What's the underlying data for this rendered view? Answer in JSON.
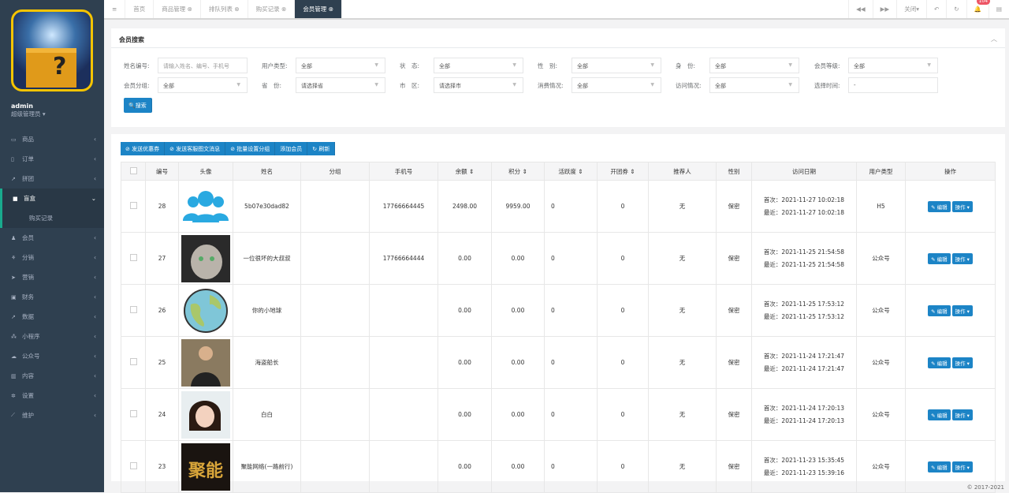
{
  "sidebar": {
    "user": "admin",
    "role": "超级管理员 ▾",
    "items": [
      {
        "label": "商品",
        "icon": "laptop-icon"
      },
      {
        "label": "订单",
        "icon": "order-icon"
      },
      {
        "label": "拼团",
        "icon": "chart-icon"
      },
      {
        "label": "盲盒",
        "icon": "square-icon",
        "active": true
      },
      {
        "label": "会员",
        "icon": "user-icon"
      },
      {
        "label": "分销",
        "icon": "sitemap-icon"
      },
      {
        "label": "营销",
        "icon": "paper-plane-icon"
      },
      {
        "label": "财务",
        "icon": "money-icon"
      },
      {
        "label": "数据",
        "icon": "chart-icon"
      },
      {
        "label": "小程序",
        "icon": "cubes-icon"
      },
      {
        "label": "公众号",
        "icon": "wechat-icon"
      },
      {
        "label": "内容",
        "icon": "book-icon"
      },
      {
        "label": "设置",
        "icon": "gear-icon"
      },
      {
        "label": "维护",
        "icon": "wrench-icon"
      }
    ],
    "sub": "购买记录"
  },
  "tabs": [
    {
      "label": "首页"
    },
    {
      "label": "商品管理 ⊗"
    },
    {
      "label": "排队列表 ⊗"
    },
    {
      "label": "购买记录 ⊗"
    },
    {
      "label": "会员管理 ⊗",
      "active": true
    }
  ],
  "toolbar": {
    "close": "关闭▾",
    "notifications": "104"
  },
  "search": {
    "title": "会员搜索",
    "fields": [
      {
        "label": "姓名编号:",
        "value": "",
        "placeholder": "请输入姓名、编号、手机号"
      },
      {
        "label": "用户类型:",
        "value": "全部"
      },
      {
        "label": "状　态:",
        "value": "全部"
      },
      {
        "label": "性　别:",
        "value": "全部"
      },
      {
        "label": "身　份:",
        "value": "全部"
      },
      {
        "label": "会员等级:",
        "value": "全部"
      },
      {
        "label": "会员分组:",
        "value": "全部"
      },
      {
        "label": "省　份:",
        "value": "请选择省"
      },
      {
        "label": "市　区:",
        "value": "请选择市"
      },
      {
        "label": "消费情况:",
        "value": "全部"
      },
      {
        "label": "访问情况:",
        "value": "全部"
      },
      {
        "label": "选择时间:",
        "value": "-"
      }
    ],
    "button": "搜索"
  },
  "actions": [
    "⊘ 发送优惠券",
    "⊘ 发送客服图文消息",
    "⊘ 批量设置分组",
    "添加会员",
    "↻ 刷新"
  ],
  "table": {
    "headers": [
      "",
      "编号",
      "头像",
      "姓名",
      "分组",
      "手机号",
      "余额 ⇕",
      "积分 ⇕",
      "活跃度 ⇕",
      "开团券 ⇕",
      "推荐人",
      "性别",
      "访问日期",
      "用户类型",
      "操作"
    ],
    "rows": [
      {
        "id": "28",
        "avatar": "users-icon",
        "name": "5b07e30dad82",
        "group": "",
        "phone": "17766664445",
        "balance": "2498.00",
        "points": "9959.00",
        "active": "0",
        "coupons": "0",
        "ref": "无",
        "gender": "保密",
        "first": "首次：2021-11-27 10:02:18",
        "last": "最近：2021-11-27 10:02:18",
        "type": "H5"
      },
      {
        "id": "27",
        "avatar": "cat-photo",
        "name": "一位很坏的大叔叔",
        "group": "",
        "phone": "17766664444",
        "balance": "0.00",
        "points": "0.00",
        "active": "0",
        "coupons": "0",
        "ref": "无",
        "gender": "保密",
        "first": "首次：2021-11-25 21:54:58",
        "last": "最近：2021-11-25 21:54:58",
        "type": "公众号"
      },
      {
        "id": "26",
        "avatar": "globe-photo",
        "name": "你的小地球",
        "group": "",
        "phone": "",
        "balance": "0.00",
        "points": "0.00",
        "active": "0",
        "coupons": "0",
        "ref": "无",
        "gender": "保密",
        "first": "首次：2021-11-25 17:53:12",
        "last": "最近：2021-11-25 17:53:12",
        "type": "公众号"
      },
      {
        "id": "25",
        "avatar": "person-photo",
        "name": "海盗船长",
        "group": "",
        "phone": "",
        "balance": "0.00",
        "points": "0.00",
        "active": "0",
        "coupons": "0",
        "ref": "无",
        "gender": "保密",
        "first": "首次：2021-11-24 17:21:47",
        "last": "最近：2021-11-24 17:21:47",
        "type": "公众号"
      },
      {
        "id": "24",
        "avatar": "girl-photo",
        "name": "白白",
        "group": "",
        "phone": "",
        "balance": "0.00",
        "points": "0.00",
        "active": "0",
        "coupons": "0",
        "ref": "无",
        "gender": "保密",
        "first": "首次：2021-11-24 17:20:13",
        "last": "最近：2021-11-24 17:20:13",
        "type": "公众号"
      },
      {
        "id": "23",
        "avatar": "poster-photo",
        "name": "聚能网络(一路前行)",
        "group": "",
        "phone": "",
        "balance": "0.00",
        "points": "0.00",
        "active": "0",
        "coupons": "0",
        "ref": "无",
        "gender": "保密",
        "first": "首次：2021-11-23 15:35:45",
        "last": "最近：2021-11-23 15:39:16",
        "type": "公众号"
      }
    ],
    "edit": "✎ 编辑",
    "more": "操作 ▾"
  },
  "footer": "© 2017-2021",
  "colors": {
    "sidebar": "#2f4050",
    "primary": "#1c84c6"
  }
}
